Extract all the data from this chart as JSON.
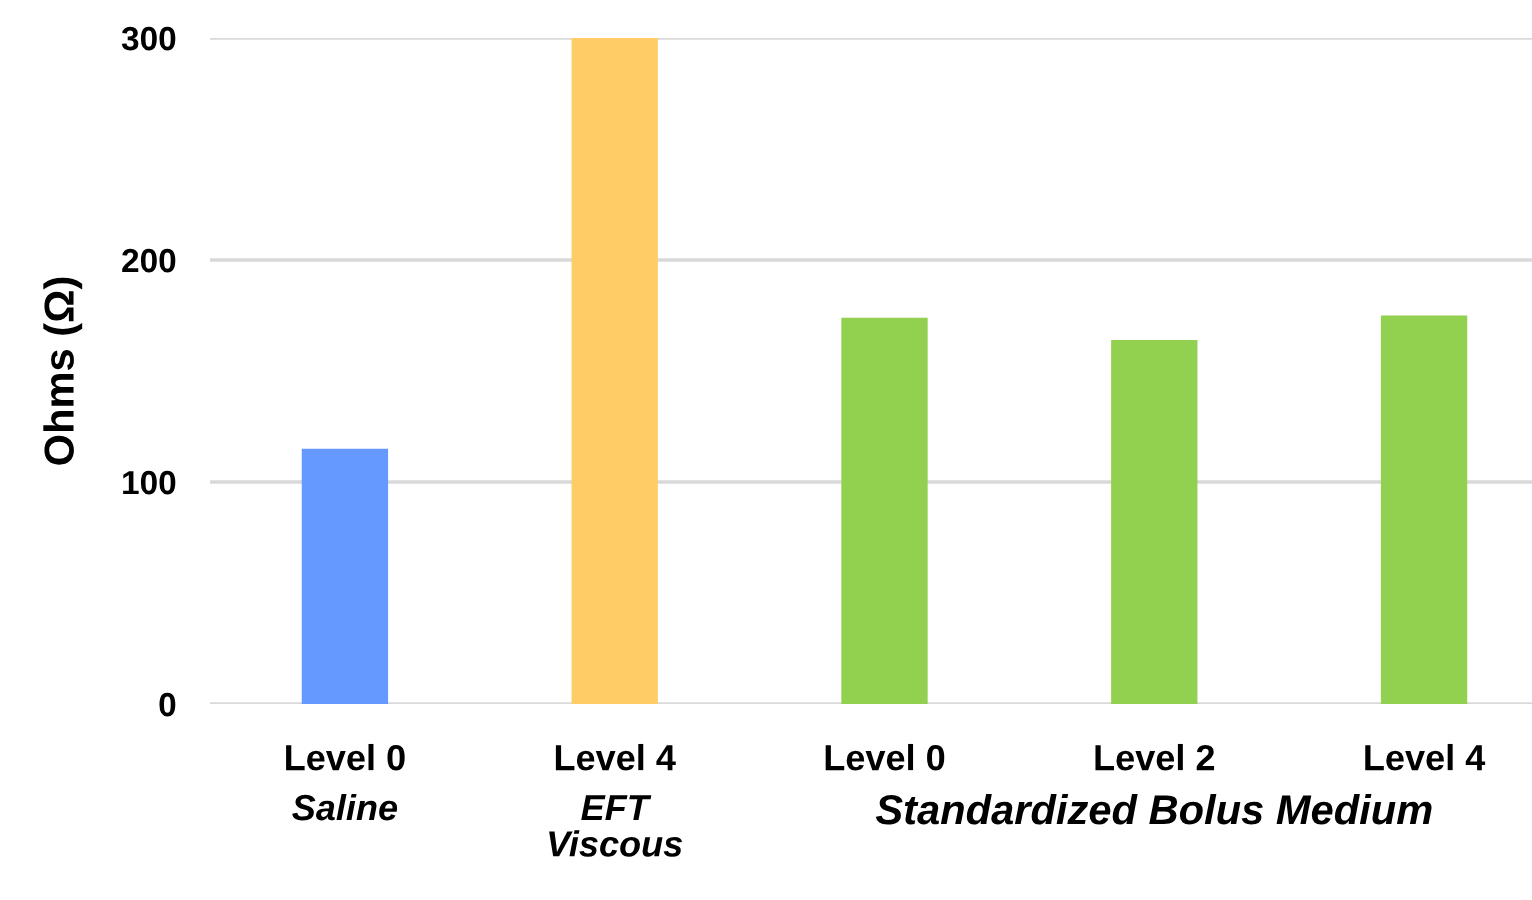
{
  "chart_data": {
    "type": "bar",
    "ylabel": "Ohms (Ω)",
    "categories": [
      "Level 0\nSaline",
      "Level 4\nEFT\nViscous",
      "Level 0",
      "Level 2",
      "Level 4"
    ],
    "values": [
      115,
      300,
      174,
      164,
      175
    ],
    "colors": [
      "#6699ff",
      "#ffcc66",
      "#92d050",
      "#92d050",
      "#92d050"
    ],
    "ylim": [
      0,
      300
    ],
    "yticks": [
      0,
      100,
      200,
      300
    ],
    "grid": "y",
    "annotations": [
      "Standardized Bolus Medium"
    ]
  }
}
